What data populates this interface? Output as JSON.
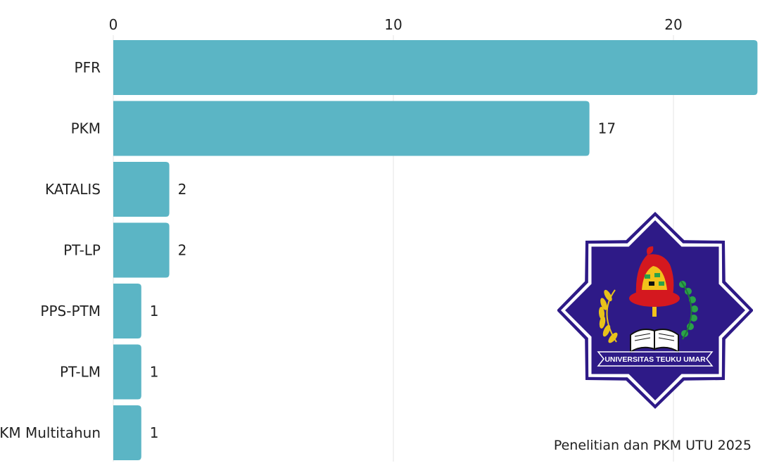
{
  "chart_data": {
    "type": "bar",
    "orientation": "horizontal",
    "categories": [
      "PFR",
      "PKM",
      "KATALIS",
      "PT-LP",
      "PPS-PTM",
      "PT-LM",
      "PKM Multitahun"
    ],
    "values": [
      23,
      17,
      2,
      2,
      1,
      1,
      1
    ],
    "data_labels": [
      "",
      "17",
      "2",
      "2",
      "1",
      "1",
      "1"
    ],
    "xticks": [
      0,
      10,
      20
    ],
    "xlim": [
      0,
      23
    ],
    "x_axis_position": "top",
    "grid": true,
    "bar_color": "#5bb5c5",
    "grid_color": "#e6e6e6"
  },
  "caption": "Penelitian dan PKM UTU 2025",
  "logo": {
    "text": "UNIVERSITAS TEUKU UMAR",
    "star_color": "#2e1a87",
    "border_color": "#ffffff"
  }
}
